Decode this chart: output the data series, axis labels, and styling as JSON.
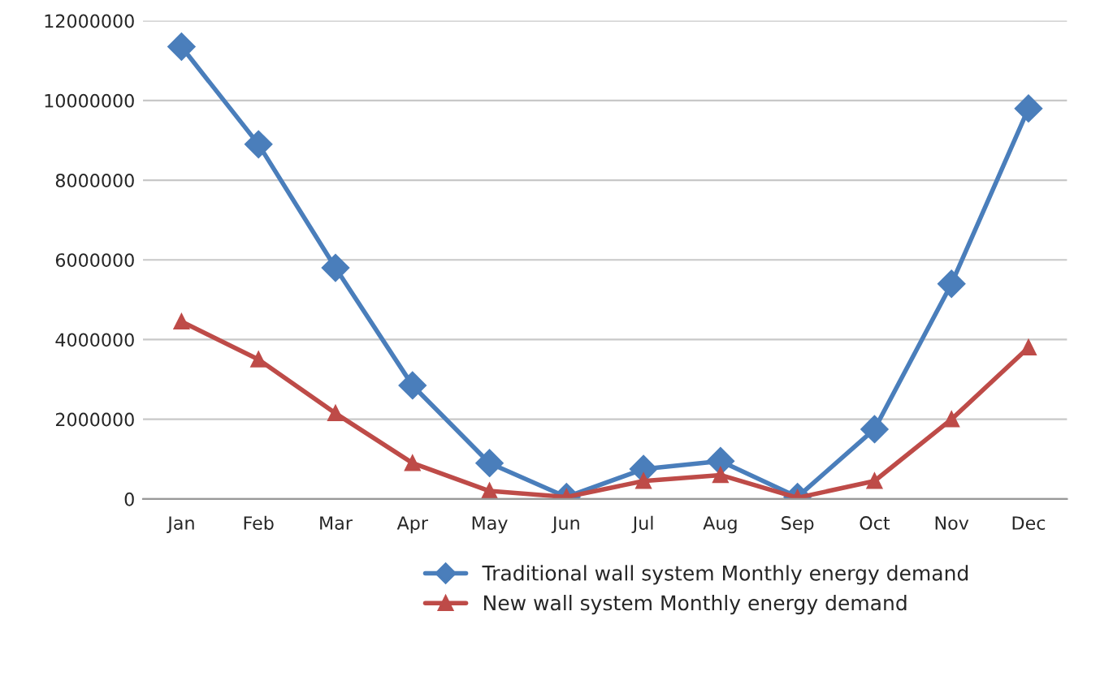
{
  "chart_data": {
    "type": "line",
    "categories": [
      "Jan",
      "Feb",
      "Mar",
      "Apr",
      "May",
      "Jun",
      "Jul",
      "Aug",
      "Sep",
      "Oct",
      "Nov",
      "Dec"
    ],
    "series": [
      {
        "name": "Traditional wall system Monthly energy demand",
        "color": "#4a7ebb",
        "marker": "diamond",
        "values": [
          11350000,
          8900000,
          5800000,
          2850000,
          900000,
          50000,
          750000,
          950000,
          50000,
          1750000,
          5400000,
          9800000
        ]
      },
      {
        "name": "New wall system Monthly energy demand",
        "color": "#be4b48",
        "marker": "triangle",
        "values": [
          4450000,
          3500000,
          2150000,
          900000,
          200000,
          50000,
          450000,
          600000,
          30000,
          450000,
          2000000,
          3800000
        ]
      }
    ],
    "ylim": [
      0,
      12000000
    ],
    "yticks": [
      0,
      2000000,
      4000000,
      6000000,
      8000000,
      10000000,
      12000000
    ],
    "grid": "y",
    "legend": "bottom",
    "line_style": "solid"
  }
}
